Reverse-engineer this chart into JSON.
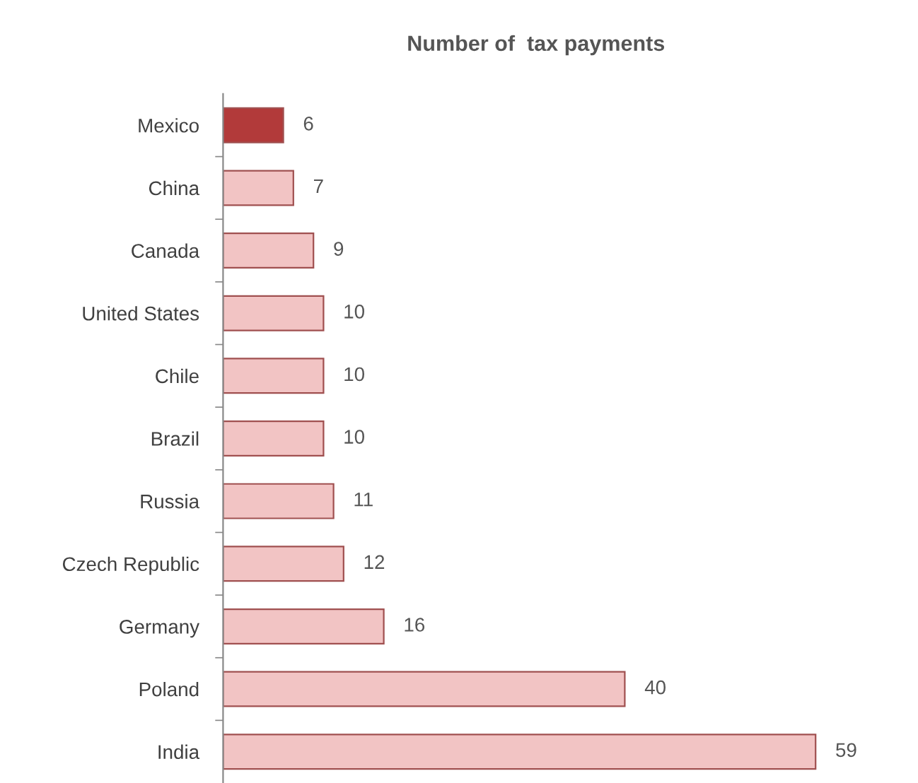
{
  "chart_data": {
    "type": "bar",
    "orientation": "horizontal",
    "title": "Number of  tax payments",
    "categories": [
      "Mexico",
      "China",
      "Canada",
      "United States",
      "Chile",
      "Brazil",
      "Russia",
      "Czech Republic",
      "Germany",
      "Poland",
      "India"
    ],
    "values": [
      6,
      7,
      9,
      10,
      10,
      10,
      11,
      12,
      16,
      40,
      59
    ],
    "colors": [
      "#b23a3a",
      "#f2c4c4",
      "#f2c4c4",
      "#f2c4c4",
      "#f2c4c4",
      "#f2c4c4",
      "#f2c4c4",
      "#f2c4c4",
      "#f2c4c4",
      "#f2c4c4",
      "#f2c4c4"
    ],
    "data_labels": true,
    "tick_labels": "y",
    "grid": false,
    "legend": false
  }
}
